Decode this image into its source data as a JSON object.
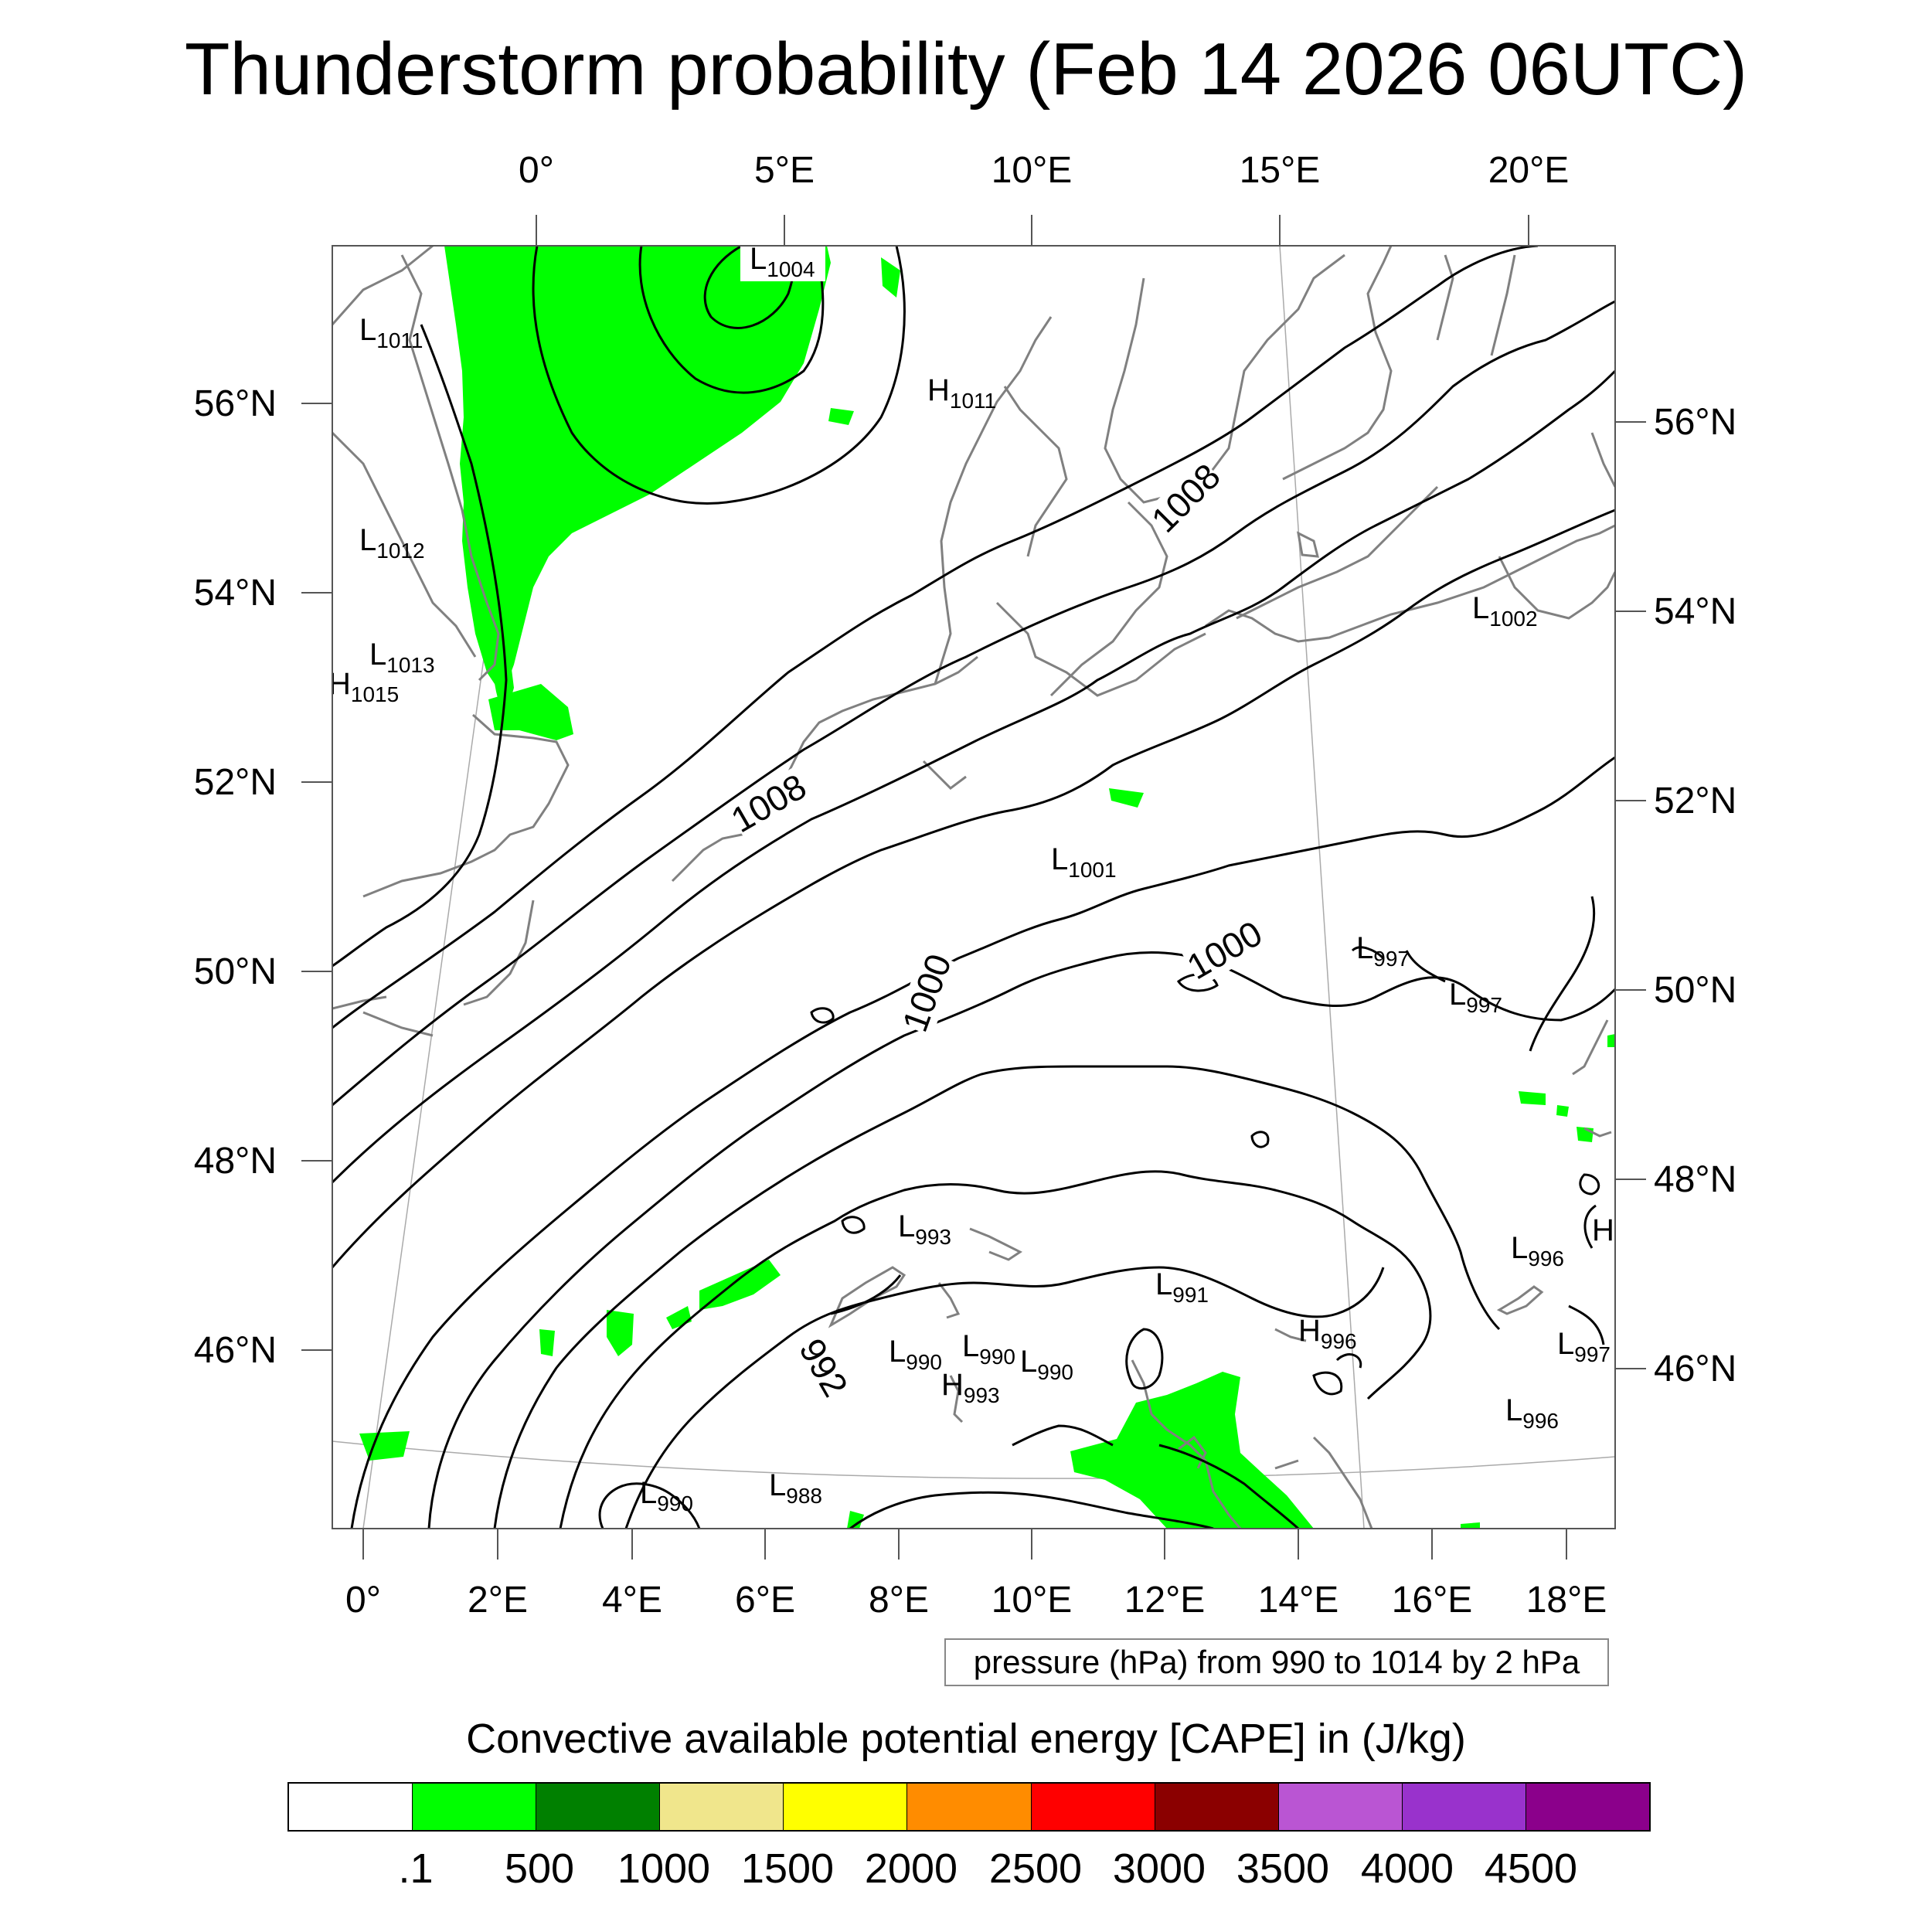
{
  "title": "Thunderstorm probability (Feb 14 2026 06UTC)",
  "map": {
    "top_lon_labels": [
      "0°",
      "5°E",
      "10°E",
      "15°E",
      "20°E"
    ],
    "bottom_lon_labels": [
      "0°",
      "2°E",
      "4°E",
      "6°E",
      "8°E",
      "10°E",
      "12°E",
      "14°E",
      "16°E",
      "18°E"
    ],
    "left_lat_labels": [
      "56°N",
      "54°N",
      "52°N",
      "50°N",
      "48°N",
      "46°N"
    ],
    "right_lat_labels": [
      "56°N",
      "54°N",
      "52°N",
      "50°N",
      "48°N",
      "46°N"
    ],
    "pressure_centers": [
      {
        "letter": "L",
        "value": "1004"
      },
      {
        "letter": "L",
        "value": "1011"
      },
      {
        "letter": "H",
        "value": "1011"
      },
      {
        "letter": "L",
        "value": "1012"
      },
      {
        "letter": "L",
        "value": "1013"
      },
      {
        "letter": "H",
        "value": "1015"
      },
      {
        "letter": "L",
        "value": "1002"
      },
      {
        "letter": "L",
        "value": "1001"
      },
      {
        "letter": "L",
        "value": "997"
      },
      {
        "letter": "L",
        "value": "997"
      },
      {
        "letter": "L",
        "value": "993"
      },
      {
        "letter": "L",
        "value": "996"
      },
      {
        "letter": "L",
        "value": "991"
      },
      {
        "letter": "H",
        "value": "996"
      },
      {
        "letter": "L",
        "value": "990"
      },
      {
        "letter": "L",
        "value": "990"
      },
      {
        "letter": "L",
        "value": "990"
      },
      {
        "letter": "H",
        "value": "993"
      },
      {
        "letter": "L",
        "value": "997"
      },
      {
        "letter": "L",
        "value": "996"
      },
      {
        "letter": "L",
        "value": "990"
      },
      {
        "letter": "L",
        "value": "988"
      },
      {
        "letter": "H",
        "value": ""
      }
    ],
    "isobar_labels": [
      "1008",
      "1008",
      "1000",
      "1000",
      "992"
    ],
    "colors": {
      "cape_green": "#00ff00",
      "coast": "#808080",
      "isobar": "#000000"
    }
  },
  "info_box": "pressure (hPa) from 990 to 1014 by 2 hPa",
  "colorbar": {
    "title": "Convective available potential energy [CAPE] in (J/kg)",
    "colors": [
      "#ffffff",
      "#00ff00",
      "#008000",
      "#f0e68c",
      "#ffff00",
      "#ff8c00",
      "#ff0000",
      "#8b0000",
      "#ba55d3",
      "#9932cc",
      "#8b008b"
    ],
    "labels": [
      ".1",
      "500",
      "1000",
      "1500",
      "2000",
      "2500",
      "3000",
      "3500",
      "4000",
      "4500"
    ]
  }
}
